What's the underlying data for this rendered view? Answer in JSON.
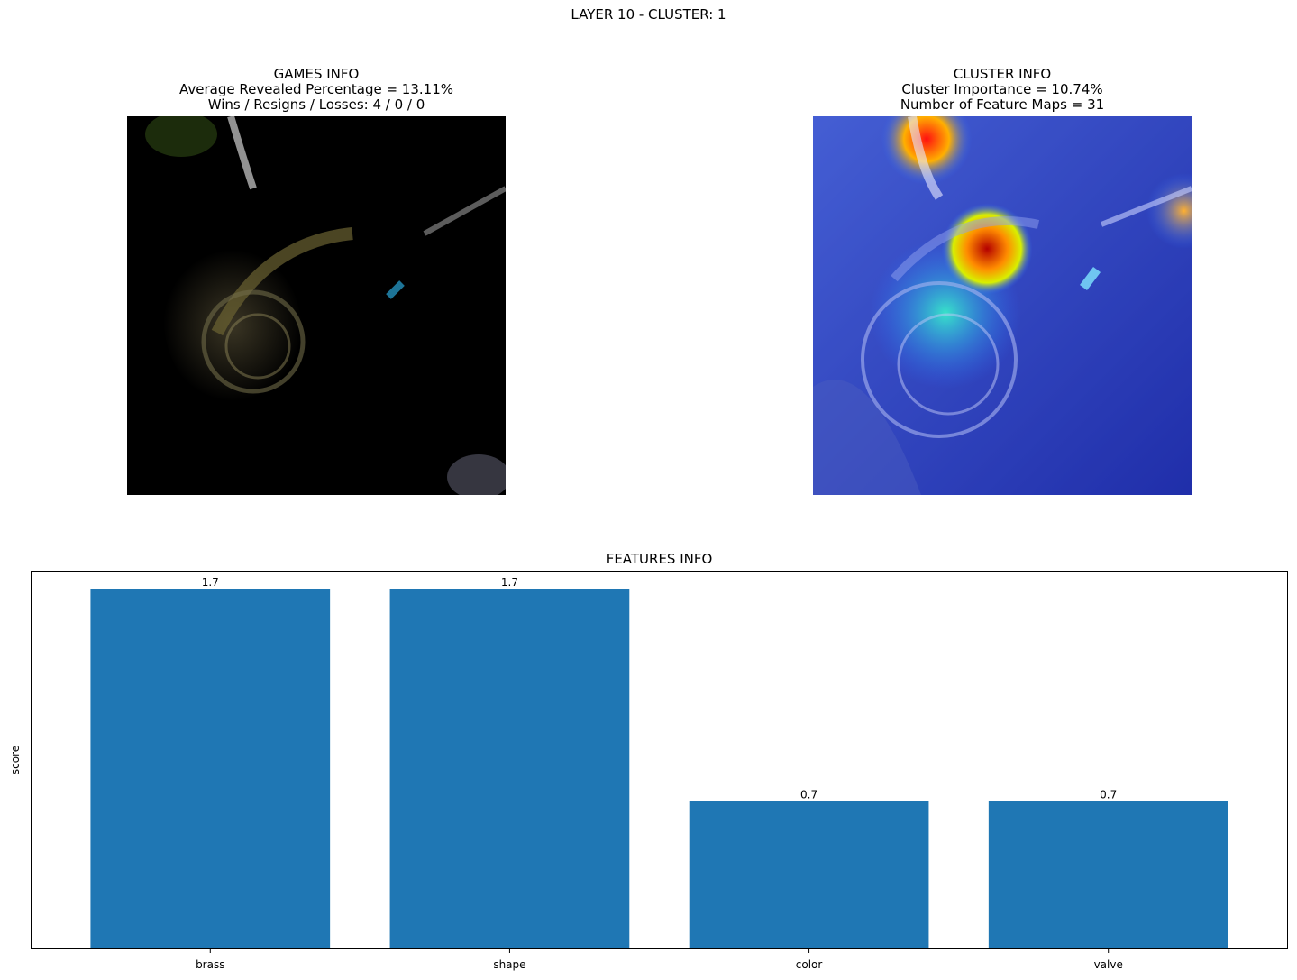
{
  "figure": {
    "suptitle": "LAYER 10 - CLUSTER: 1"
  },
  "games_panel": {
    "title_lines": [
      "GAMES INFO",
      "Average Revealed Percentage = 13.11%",
      "Wins / Resigns / Losses: 4 / 0 / 0"
    ],
    "image_description": "masked-french-horn"
  },
  "cluster_panel": {
    "title_lines": [
      "CLUSTER INFO",
      "Cluster Importance = 10.74%",
      "Number of Feature Maps = 31"
    ],
    "image_description": "heatmap-overlay-french-horn"
  },
  "chart_data": {
    "type": "bar",
    "title": "FEATURES INFO",
    "categories": [
      "brass",
      "shape",
      "color",
      "valve"
    ],
    "values": [
      1.7,
      1.7,
      0.7,
      0.7
    ],
    "data_labels": [
      "1.7",
      "1.7",
      "0.7",
      "0.7"
    ],
    "xlabel": "",
    "ylabel": "score",
    "ylim": [
      0,
      1.785
    ],
    "grid": false,
    "bar_color": "#1f77b4"
  }
}
